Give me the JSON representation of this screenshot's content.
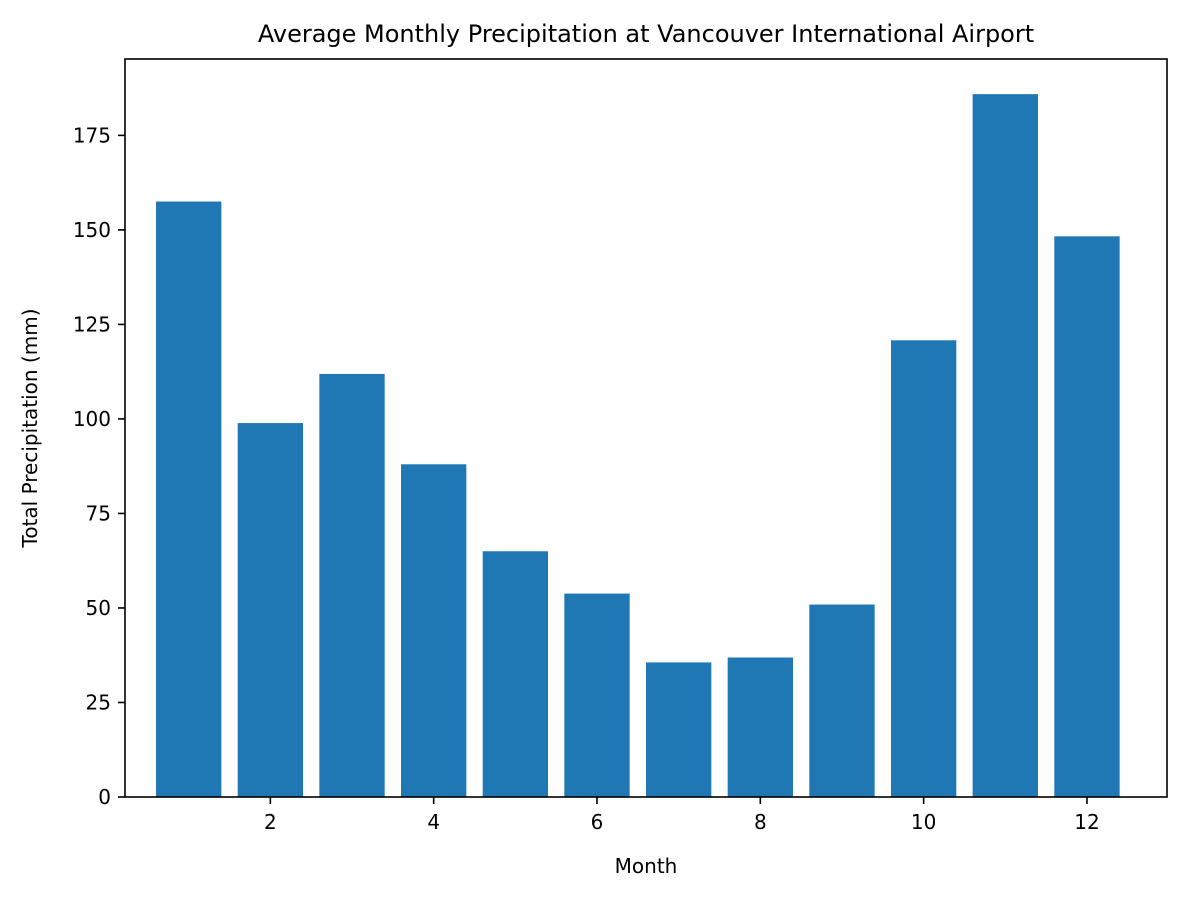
{
  "chart_data": {
    "type": "bar",
    "title": "Average Monthly Precipitation at Vancouver International Airport",
    "xlabel": "Month",
    "ylabel": "Total Precipitation (mm)",
    "categories": [
      1,
      2,
      3,
      4,
      5,
      6,
      7,
      8,
      9,
      10,
      11,
      12
    ],
    "values": [
      157.5,
      98.9,
      111.9,
      88.0,
      65.0,
      53.8,
      35.6,
      36.9,
      50.9,
      120.8,
      185.9,
      148.3
    ],
    "xlim": [
      0.22,
      12.98
    ],
    "ylim": [
      0,
      195.2
    ],
    "xticks": [
      2,
      4,
      6,
      8,
      10,
      12
    ],
    "yticks": [
      0,
      25,
      50,
      75,
      100,
      125,
      150,
      175
    ],
    "bar_color": "#1f77b4",
    "grid": false,
    "legend": "none"
  }
}
